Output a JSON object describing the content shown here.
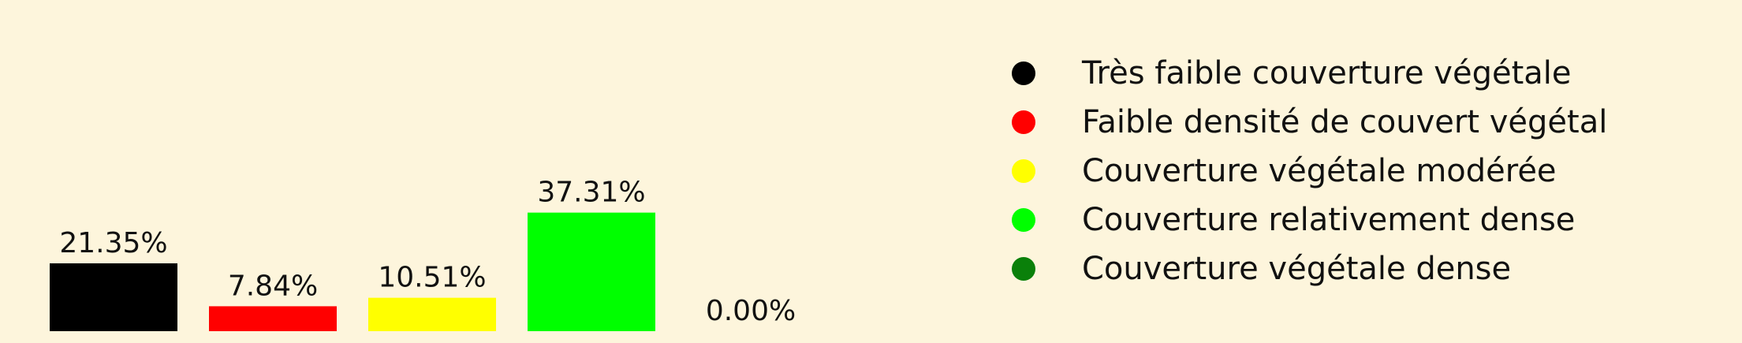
{
  "chart_data": {
    "type": "bar",
    "categories": [
      "Très faible couverture végétale",
      "Faible densité de couvert végétal",
      "Couverture végétale modérée",
      "Couverture relativement dense",
      "Couverture végétale dense"
    ],
    "values": [
      21.35,
      7.84,
      10.51,
      37.31,
      0.0
    ],
    "value_labels": [
      "21.35%",
      "7.84%",
      "10.51%",
      "37.31%",
      "0.00%"
    ],
    "colors": [
      "#000000",
      "#ff0000",
      "#ffff00",
      "#00ff00",
      "#0a800a"
    ],
    "title": "",
    "xlabel": "",
    "ylabel": "",
    "grid": false,
    "legend_position": "right"
  },
  "colors": {
    "background": "#fdf5dc"
  }
}
